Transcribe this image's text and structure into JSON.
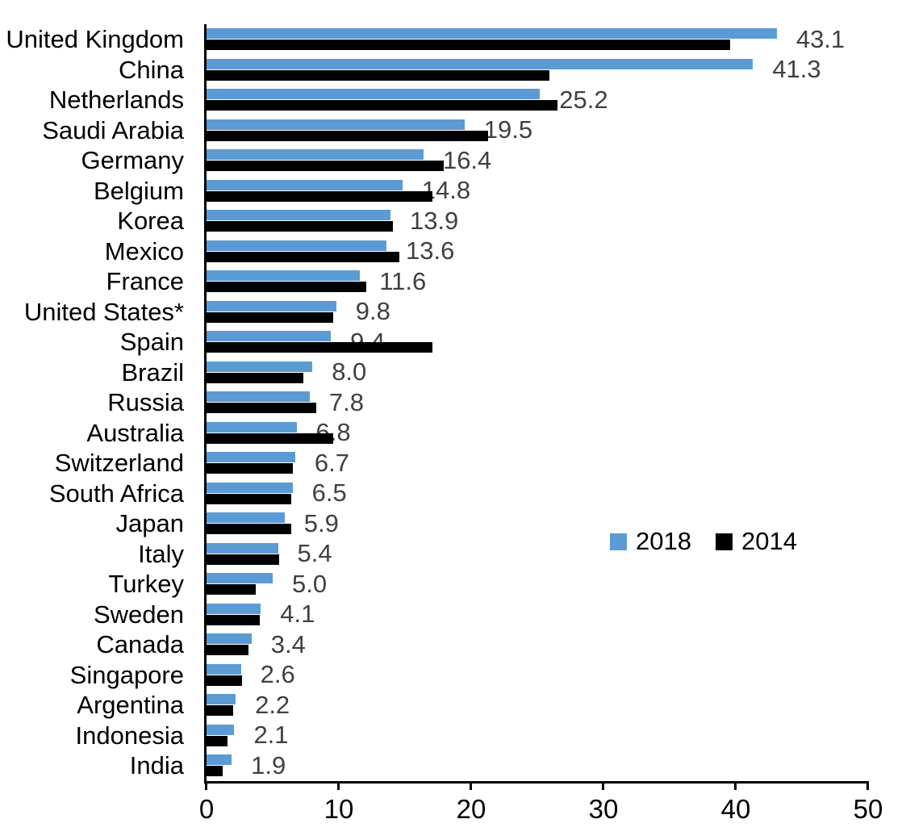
{
  "chart_data": {
    "type": "bar",
    "orientation": "horizontal",
    "title": "",
    "categories": [
      "United Kingdom",
      "China",
      "Netherlands",
      "Saudi Arabia",
      "Germany",
      "Belgium",
      "Korea",
      "Mexico",
      "France",
      "United States*",
      "Spain",
      "Brazil",
      "Russia",
      "Australia",
      "Switzerland",
      "South Africa",
      "Japan",
      "Italy",
      "Turkey",
      "Sweden",
      "Canada",
      "Singapore",
      "Argentina",
      "Indonesia",
      "India"
    ],
    "series": [
      {
        "name": "2018",
        "color": "#5B9BD5",
        "values": [
          43.1,
          41.3,
          25.2,
          19.5,
          16.4,
          14.8,
          13.9,
          13.6,
          11.6,
          9.8,
          9.4,
          8.0,
          7.8,
          6.8,
          6.7,
          6.5,
          5.9,
          5.4,
          5.0,
          4.1,
          3.4,
          2.6,
          2.2,
          2.1,
          1.9
        ]
      },
      {
        "name": "2014",
        "color": "#000000",
        "values": [
          39.6,
          25.9,
          26.5,
          21.3,
          17.9,
          17.1,
          14.1,
          14.6,
          12.1,
          9.6,
          17.1,
          7.3,
          8.3,
          9.6,
          6.5,
          6.4,
          6.4,
          5.5,
          3.7,
          4.0,
          3.2,
          2.7,
          2.0,
          1.6,
          1.2
        ]
      }
    ],
    "labeled_series": "2018",
    "value_labels": [
      "43.1",
      "41.3",
      "25.2",
      "19.5",
      "16.4",
      "14.8",
      "13.9",
      "13.6",
      "11.6",
      "9.8",
      "9.4",
      "8.0",
      "7.8",
      "6.8",
      "6.7",
      "6.5",
      "5.9",
      "5.4",
      "5.0",
      "4.1",
      "3.4",
      "2.6",
      "2.2",
      "2.1",
      "1.9"
    ],
    "value_label_color": "#404040",
    "xlabel": "",
    "ylabel": "",
    "xlim": [
      0,
      50
    ],
    "x_ticks": [
      0,
      10,
      20,
      30,
      40,
      50
    ],
    "grid": false,
    "legend_position": "middle-right"
  },
  "legend": {
    "items": [
      {
        "label": "2018",
        "color": "#5B9BD5"
      },
      {
        "label": "2014",
        "color": "#000000"
      }
    ]
  }
}
